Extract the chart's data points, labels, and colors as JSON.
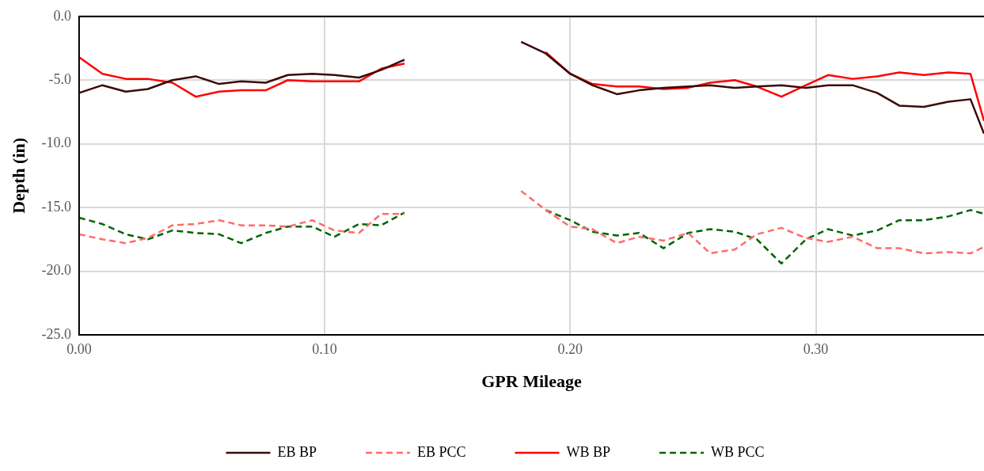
{
  "chart_data": {
    "type": "line",
    "xlabel": "GPR Mileage",
    "ylabel": "Depth (in)",
    "x": [
      0,
      0.0095,
      0.019,
      0.028,
      0.038,
      0.0475,
      0.057,
      0.066,
      0.076,
      0.085,
      0.095,
      0.104,
      0.114,
      0.123,
      0.1325,
      0.142,
      0.151,
      0.161,
      0.17,
      0.18,
      0.19,
      0.2,
      0.209,
      0.219,
      0.228,
      0.238,
      0.248,
      0.257,
      0.267,
      0.276,
      0.286,
      0.296,
      0.305,
      0.315,
      0.325,
      0.334,
      0.344,
      0.354,
      0.363,
      0.3685
    ],
    "series": [
      {
        "name": "EB BP",
        "color": "#3a0a0a",
        "line_style": "solid",
        "values": [
          -6.0,
          -5.4,
          -5.9,
          -5.7,
          -5.0,
          -4.7,
          -5.3,
          -5.1,
          -5.2,
          -4.6,
          -4.5,
          -4.6,
          -4.8,
          -4.2,
          -3.4,
          null,
          null,
          null,
          null,
          -2.0,
          -2.9,
          -4.5,
          -5.4,
          -6.1,
          -5.8,
          -5.6,
          -5.5,
          -5.4,
          -5.6,
          -5.5,
          -5.4,
          -5.6,
          -5.4,
          -5.4,
          -6.0,
          -7.0,
          -7.1,
          -6.7,
          -6.5,
          -9.2
        ]
      },
      {
        "name": "EB PCC",
        "color": "#ff6b6b",
        "line_style": "dashed",
        "values": [
          -17.1,
          -17.5,
          -17.8,
          -17.4,
          -16.4,
          -16.3,
          -16.0,
          -16.4,
          -16.4,
          -16.5,
          -16.0,
          -16.8,
          -17.0,
          -15.5,
          -15.5,
          null,
          null,
          null,
          null,
          -13.7,
          -15.2,
          -16.5,
          -16.7,
          -17.8,
          -17.3,
          -17.6,
          -17.0,
          -18.6,
          -18.3,
          -17.1,
          -16.6,
          -17.4,
          -17.7,
          -17.3,
          -18.2,
          -18.2,
          -18.6,
          -18.5,
          -18.6,
          -18.1
        ]
      },
      {
        "name": "WB BP",
        "color": "#ff0000",
        "line_style": "solid",
        "values": [
          -3.2,
          -4.5,
          -4.9,
          -4.9,
          -5.2,
          -6.3,
          -5.9,
          -5.8,
          -5.8,
          -5.0,
          -5.1,
          -5.1,
          -5.1,
          -4.1,
          -3.7,
          null,
          null,
          null,
          null,
          null,
          -2.8,
          -4.5,
          -5.3,
          -5.5,
          -5.5,
          -5.7,
          -5.6,
          -5.2,
          -5.0,
          -5.5,
          -6.3,
          -5.4,
          -4.6,
          -4.9,
          -4.7,
          -4.4,
          -4.6,
          -4.4,
          -4.5,
          -8.2
        ]
      },
      {
        "name": "WB PCC",
        "color": "#006400",
        "line_style": "dashed",
        "values": [
          -15.8,
          -16.3,
          -17.1,
          -17.5,
          -16.8,
          -17.0,
          -17.1,
          -17.8,
          -17.0,
          -16.5,
          -16.5,
          -17.3,
          -16.3,
          -16.4,
          -15.4,
          null,
          null,
          null,
          null,
          null,
          -15.2,
          -16.0,
          -16.9,
          -17.2,
          -17.0,
          -18.2,
          -17.0,
          -16.7,
          -16.9,
          -17.5,
          -19.4,
          -17.5,
          -16.7,
          -17.2,
          -16.8,
          -16.0,
          -16.0,
          -15.7,
          -15.2,
          -15.5
        ]
      }
    ],
    "xlim": [
      0,
      0.3685
    ],
    "xticks": [
      {
        "value": 0,
        "label": "0.00"
      },
      {
        "value": 0.1,
        "label": "0.10"
      },
      {
        "value": 0.2,
        "label": "0.20"
      },
      {
        "value": 0.3,
        "label": "0.30"
      }
    ],
    "ylim": [
      -25,
      0
    ],
    "yticks": [
      {
        "value": -25,
        "label": "-25.0"
      },
      {
        "value": -20,
        "label": "-20.0"
      },
      {
        "value": -15,
        "label": "-15.0"
      },
      {
        "value": -10,
        "label": "-10.0"
      },
      {
        "value": -5,
        "label": "-5.0"
      },
      {
        "value": 0,
        "label": "0.0"
      }
    ],
    "grid": true,
    "legend": "bottom",
    "marker": "none"
  }
}
